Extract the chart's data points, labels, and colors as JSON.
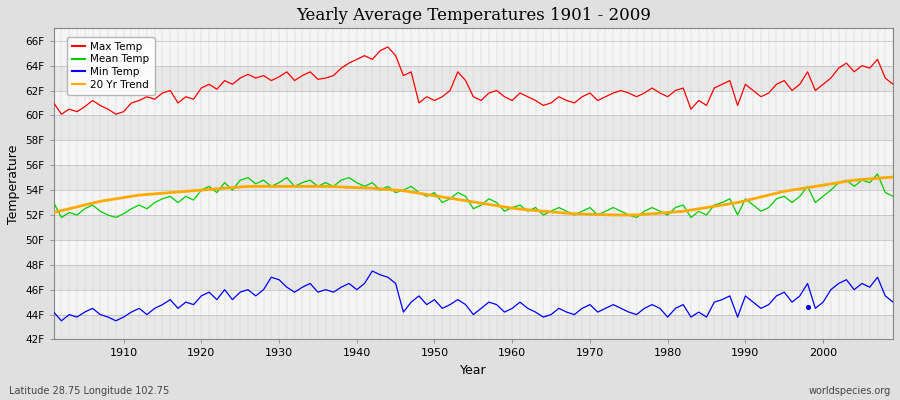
{
  "title": "Yearly Average Temperatures 1901 - 2009",
  "xlabel": "Year",
  "ylabel": "Temperature",
  "subtitle_lat": "Latitude 28.75 Longitude 102.75",
  "credit": "worldspecies.org",
  "years": [
    1901,
    1902,
    1903,
    1904,
    1905,
    1906,
    1907,
    1908,
    1909,
    1910,
    1911,
    1912,
    1913,
    1914,
    1915,
    1916,
    1917,
    1918,
    1919,
    1920,
    1921,
    1922,
    1923,
    1924,
    1925,
    1926,
    1927,
    1928,
    1929,
    1930,
    1931,
    1932,
    1933,
    1934,
    1935,
    1936,
    1937,
    1938,
    1939,
    1940,
    1941,
    1942,
    1943,
    1944,
    1945,
    1946,
    1947,
    1948,
    1949,
    1950,
    1951,
    1952,
    1953,
    1954,
    1955,
    1956,
    1957,
    1958,
    1959,
    1960,
    1961,
    1962,
    1963,
    1964,
    1965,
    1966,
    1967,
    1968,
    1969,
    1970,
    1971,
    1972,
    1973,
    1974,
    1975,
    1976,
    1977,
    1978,
    1979,
    1980,
    1981,
    1982,
    1983,
    1984,
    1985,
    1986,
    1987,
    1988,
    1989,
    1990,
    1991,
    1992,
    1993,
    1994,
    1995,
    1996,
    1997,
    1998,
    1999,
    2000,
    2001,
    2002,
    2003,
    2004,
    2005,
    2006,
    2007,
    2008,
    2009
  ],
  "max_temp": [
    61.0,
    60.1,
    60.5,
    60.3,
    60.7,
    61.2,
    60.8,
    60.5,
    60.1,
    60.3,
    61.0,
    61.2,
    61.5,
    61.3,
    61.8,
    62.0,
    61.0,
    61.5,
    61.3,
    62.2,
    62.5,
    62.1,
    62.8,
    62.5,
    63.0,
    63.3,
    63.0,
    63.2,
    62.8,
    63.1,
    63.5,
    62.8,
    63.2,
    63.5,
    62.9,
    63.0,
    63.2,
    63.8,
    64.2,
    64.5,
    64.8,
    64.5,
    65.2,
    65.5,
    64.8,
    63.2,
    63.5,
    61.0,
    61.5,
    61.2,
    61.5,
    62.0,
    63.5,
    62.8,
    61.5,
    61.2,
    61.8,
    62.0,
    61.5,
    61.2,
    61.8,
    61.5,
    61.2,
    60.8,
    61.0,
    61.5,
    61.2,
    61.0,
    61.5,
    61.8,
    61.2,
    61.5,
    61.8,
    62.0,
    61.8,
    61.5,
    61.8,
    62.2,
    61.8,
    61.5,
    62.0,
    62.2,
    60.5,
    61.2,
    60.8,
    62.2,
    62.5,
    62.8,
    60.8,
    62.5,
    62.0,
    61.5,
    61.8,
    62.5,
    62.8,
    62.0,
    62.5,
    63.5,
    62.0,
    62.5,
    63.0,
    63.8,
    64.2,
    63.5,
    64.0,
    63.8,
    64.5,
    63.0,
    62.5
  ],
  "mean_temp": [
    53.0,
    51.8,
    52.2,
    52.0,
    52.5,
    52.8,
    52.3,
    52.0,
    51.8,
    52.1,
    52.5,
    52.8,
    52.5,
    53.0,
    53.3,
    53.5,
    53.0,
    53.5,
    53.2,
    54.0,
    54.3,
    53.8,
    54.6,
    54.0,
    54.8,
    55.0,
    54.5,
    54.8,
    54.3,
    54.6,
    55.0,
    54.3,
    54.6,
    54.8,
    54.3,
    54.6,
    54.3,
    54.8,
    55.0,
    54.6,
    54.3,
    54.6,
    54.0,
    54.3,
    53.8,
    54.0,
    54.3,
    53.8,
    53.5,
    53.8,
    53.0,
    53.3,
    53.8,
    53.5,
    52.5,
    52.8,
    53.3,
    53.0,
    52.3,
    52.6,
    52.8,
    52.3,
    52.6,
    52.0,
    52.3,
    52.6,
    52.3,
    52.0,
    52.3,
    52.6,
    52.0,
    52.3,
    52.6,
    52.3,
    52.0,
    51.8,
    52.3,
    52.6,
    52.3,
    52.0,
    52.6,
    52.8,
    51.8,
    52.3,
    52.0,
    52.8,
    53.0,
    53.3,
    52.0,
    53.3,
    52.8,
    52.3,
    52.6,
    53.3,
    53.5,
    53.0,
    53.5,
    54.3,
    53.0,
    53.5,
    54.0,
    54.6,
    54.8,
    54.3,
    54.8,
    54.6,
    55.3,
    53.8,
    53.5
  ],
  "min_temp": [
    44.2,
    43.5,
    44.0,
    43.8,
    44.2,
    44.5,
    44.0,
    43.8,
    43.5,
    43.8,
    44.2,
    44.5,
    44.0,
    44.5,
    44.8,
    45.2,
    44.5,
    45.0,
    44.8,
    45.5,
    45.8,
    45.2,
    46.0,
    45.2,
    45.8,
    46.0,
    45.5,
    46.0,
    47.0,
    46.8,
    46.2,
    45.8,
    46.2,
    46.5,
    45.8,
    46.0,
    45.8,
    46.2,
    46.5,
    46.0,
    46.5,
    47.5,
    47.2,
    47.0,
    46.5,
    44.2,
    45.0,
    45.5,
    44.8,
    45.2,
    44.5,
    44.8,
    45.2,
    44.8,
    44.0,
    44.5,
    45.0,
    44.8,
    44.2,
    44.5,
    45.0,
    44.5,
    44.2,
    43.8,
    44.0,
    44.5,
    44.2,
    44.0,
    44.5,
    44.8,
    44.2,
    44.5,
    44.8,
    44.5,
    44.2,
    44.0,
    44.5,
    44.8,
    44.5,
    43.8,
    44.5,
    44.8,
    43.8,
    44.2,
    43.8,
    45.0,
    45.2,
    45.5,
    43.8,
    45.5,
    45.0,
    44.5,
    44.8,
    45.5,
    45.8,
    45.0,
    45.5,
    46.5,
    44.5,
    45.0,
    46.0,
    46.5,
    46.8,
    46.0,
    46.5,
    46.2,
    47.0,
    45.5,
    45.0
  ],
  "trend_20yr": [
    52.2,
    52.35,
    52.5,
    52.65,
    52.8,
    52.95,
    53.1,
    53.2,
    53.3,
    53.4,
    53.5,
    53.6,
    53.65,
    53.7,
    53.75,
    53.8,
    53.85,
    53.9,
    53.95,
    54.0,
    54.05,
    54.1,
    54.15,
    54.2,
    54.25,
    54.3,
    54.3,
    54.3,
    54.3,
    54.3,
    54.3,
    54.3,
    54.3,
    54.3,
    54.3,
    54.3,
    54.28,
    54.25,
    54.22,
    54.2,
    54.18,
    54.15,
    54.1,
    54.05,
    54.0,
    53.95,
    53.85,
    53.75,
    53.65,
    53.55,
    53.45,
    53.35,
    53.25,
    53.15,
    53.05,
    52.95,
    52.85,
    52.75,
    52.65,
    52.55,
    52.48,
    52.42,
    52.36,
    52.3,
    52.25,
    52.2,
    52.15,
    52.1,
    52.08,
    52.06,
    52.04,
    52.02,
    52.0,
    52.0,
    52.0,
    52.0,
    52.05,
    52.1,
    52.15,
    52.2,
    52.25,
    52.3,
    52.4,
    52.5,
    52.6,
    52.7,
    52.8,
    52.9,
    53.0,
    53.15,
    53.3,
    53.45,
    53.6,
    53.75,
    53.9,
    54.0,
    54.1,
    54.2,
    54.3,
    54.4,
    54.5,
    54.6,
    54.7,
    54.8,
    54.85,
    54.9,
    54.95,
    55.0,
    55.05
  ],
  "max_color": "#ff0000",
  "mean_color": "#00cc00",
  "min_color": "#0000ff",
  "trend_color": "#ffaa00",
  "fig_bg": "#e0e0e0",
  "plot_bg_light": "#f5f5f5",
  "plot_bg_dark": "#e8e8e8",
  "ylim": [
    42,
    67
  ],
  "yticks": [
    42,
    44,
    46,
    48,
    50,
    52,
    54,
    56,
    58,
    60,
    62,
    64,
    66
  ],
  "ytick_labels": [
    "42F",
    "44F",
    "46F",
    "48F",
    "50F",
    "52F",
    "54F",
    "56F",
    "58F",
    "60F",
    "62F",
    "64F",
    "66F"
  ],
  "legend_labels": [
    "Max Temp",
    "Mean Temp",
    "Min Temp",
    "20 Yr Trend"
  ],
  "legend_colors": [
    "#ff0000",
    "#00cc00",
    "#0000ff",
    "#ffaa00"
  ]
}
